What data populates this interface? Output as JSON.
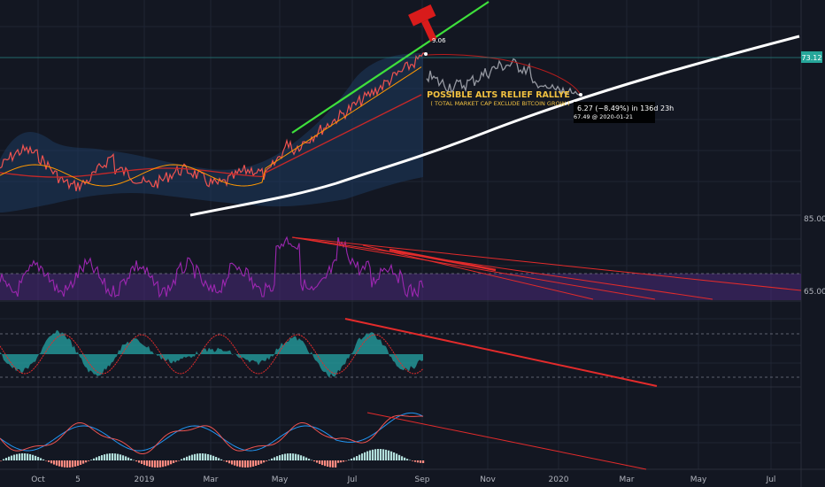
{
  "chart_data": {
    "type": "line",
    "x_ticks": [
      "Oct",
      "5",
      "2019",
      "Mar",
      "May",
      "Jul",
      "Sep",
      "Nov",
      "2020",
      "Mar",
      "May",
      "Jul"
    ],
    "price_label": "73.12",
    "rsi_labels": [
      "85.00",
      "65.00"
    ],
    "annotation_title": "POSSIBLE ALTS RELIEF RALLYE",
    "annotation_subtitle": "( TOTAL MARKET CAP EXCLUDE BITCOIN GROW )",
    "measure_line1": "6.27 (−8.49%) in 136d 23h",
    "measure_line2": "67.49 @ 2020-01-21",
    "peak_label": "9.06",
    "colors": {
      "background": "#131722",
      "green_trend": "#3ee03b",
      "white_trend": "#ffffff",
      "red_trend": "#e32b2b",
      "rsi": "#9c27b0",
      "osc_fill": "#26a6a6",
      "candle_up": "#26a69a",
      "candle_down": "#ef5350",
      "price_line": "#00bcd4"
    }
  },
  "icons": {
    "hammer": "hammer-icon"
  }
}
